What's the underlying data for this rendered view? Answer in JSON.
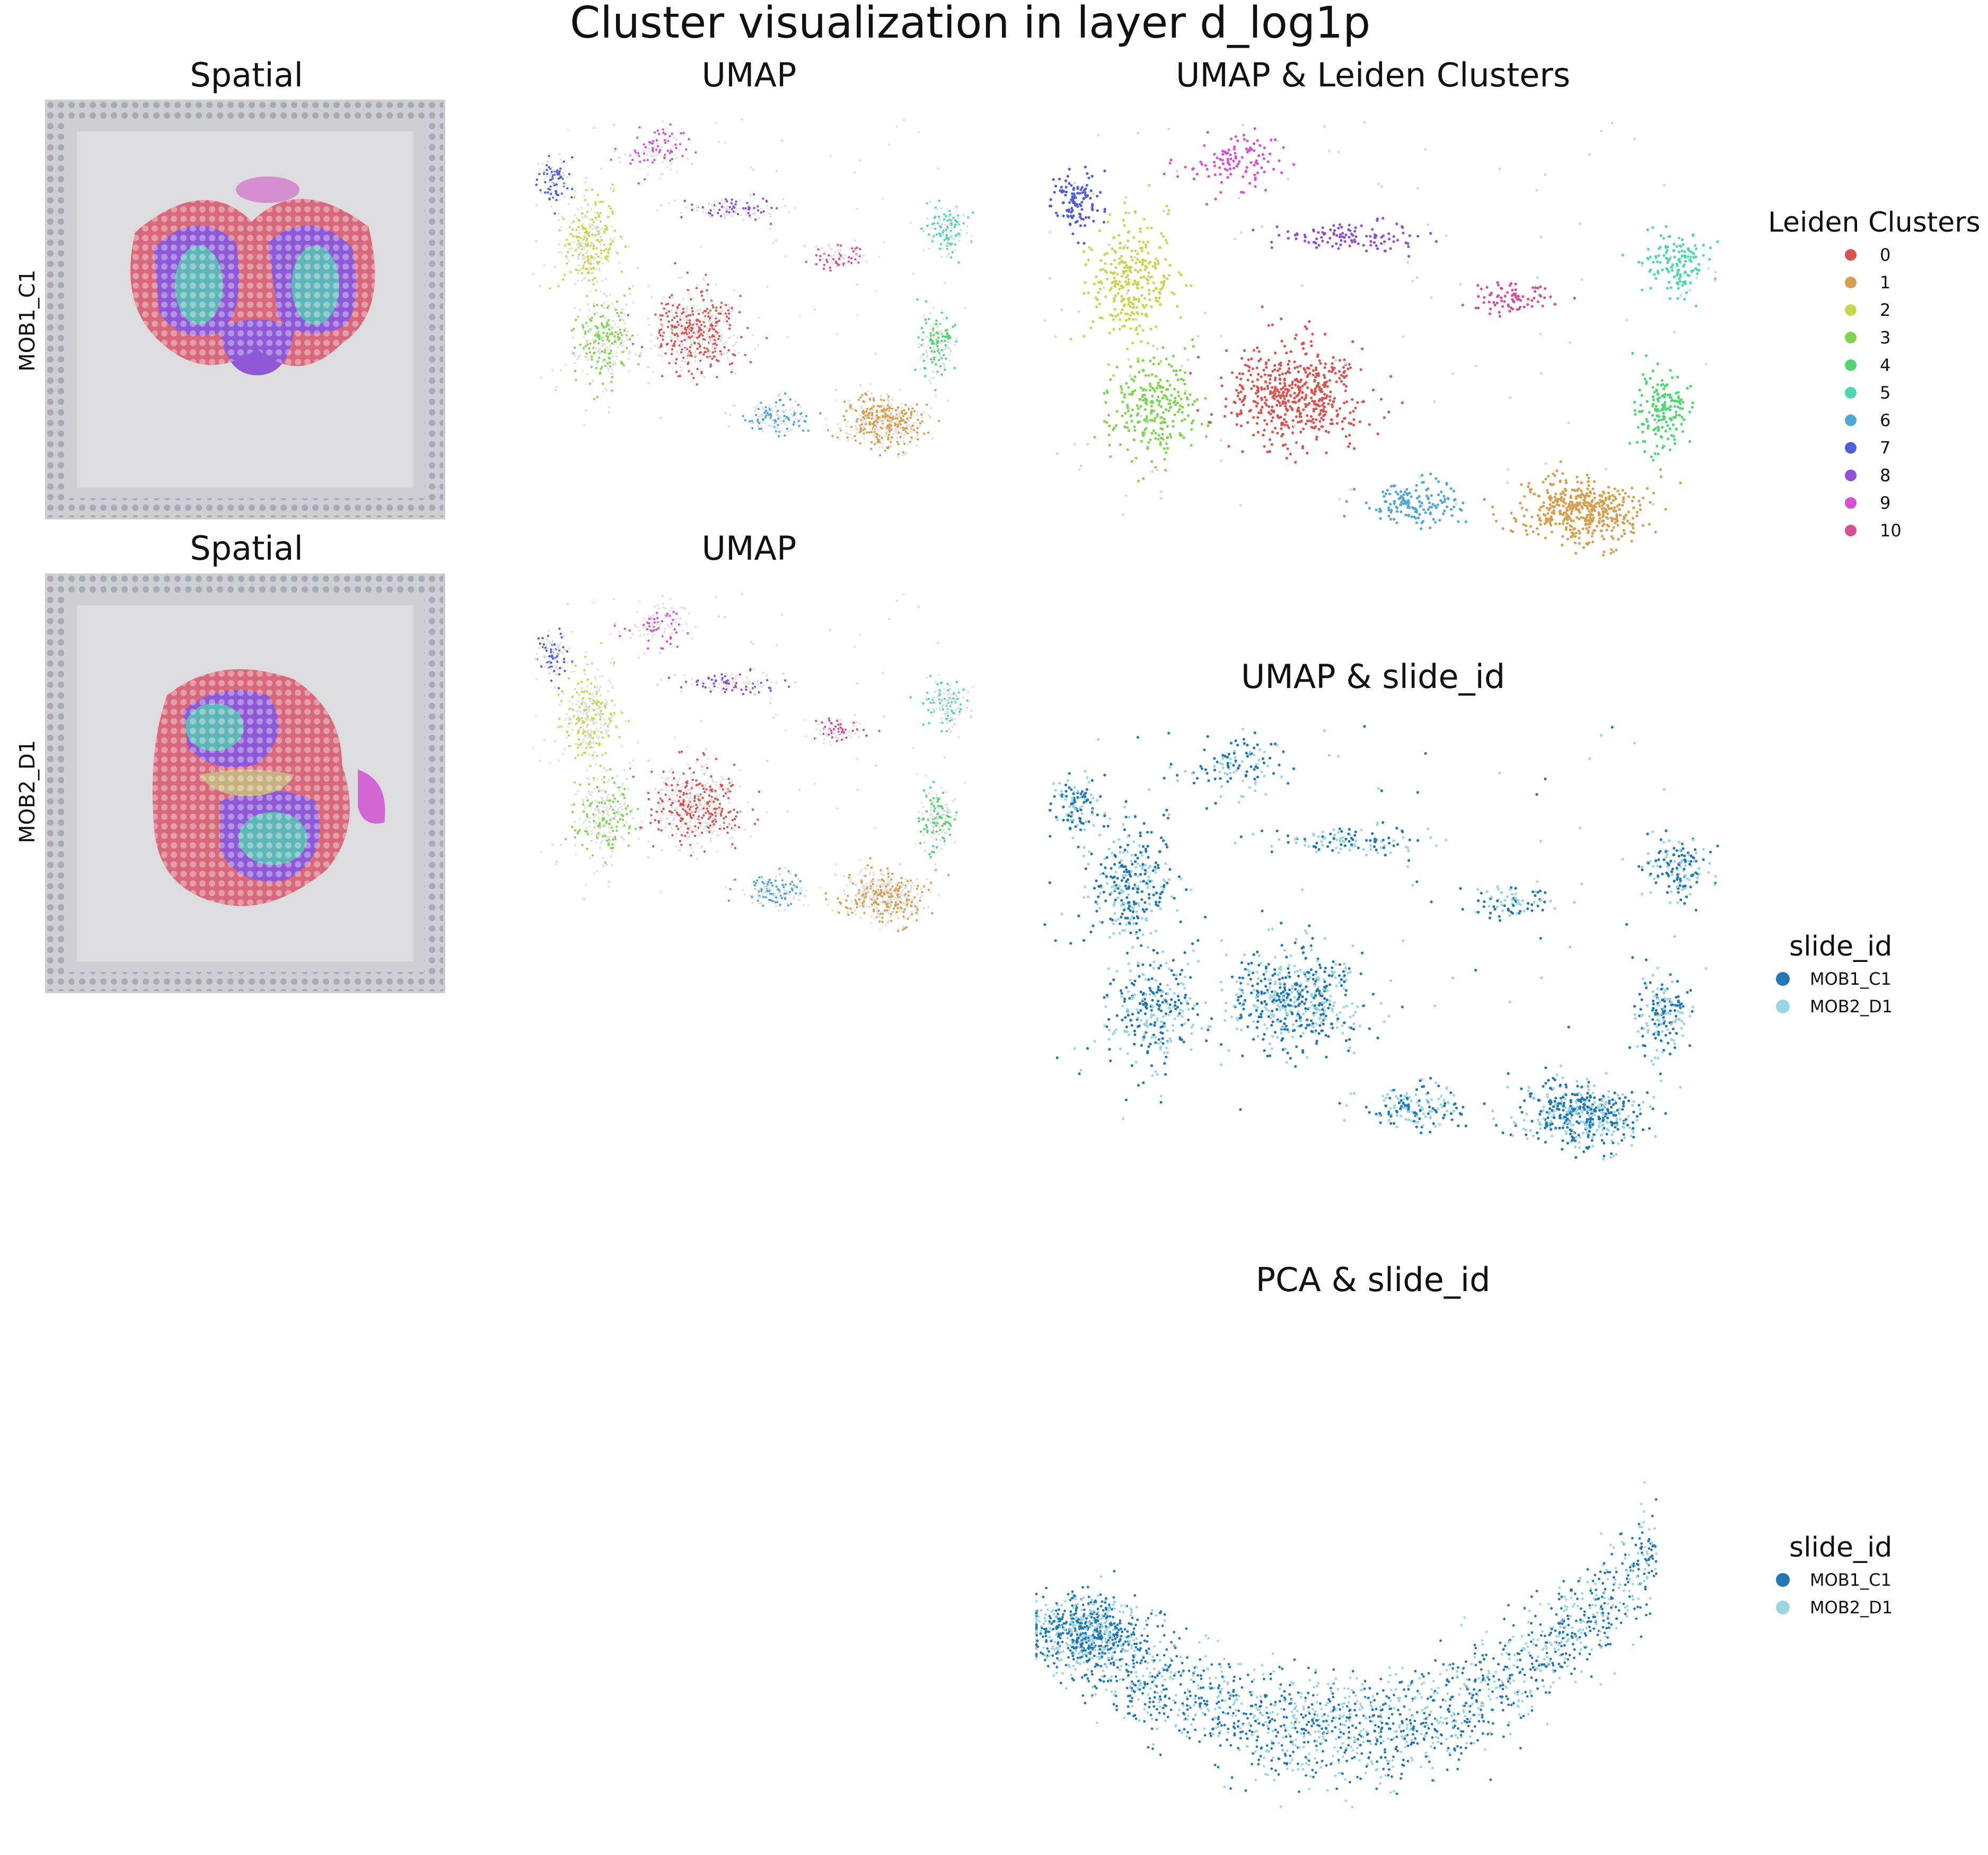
{
  "figure": {
    "title": "Cluster visualization in layer d_log1p"
  },
  "panels": {
    "spatial_1": {
      "title": "Spatial",
      "row_label": "MOB1_C1"
    },
    "spatial_2": {
      "title": "Spatial",
      "row_label": "MOB2_D1"
    },
    "umap_1": {
      "title": "UMAP"
    },
    "umap_2": {
      "title": "UMAP"
    },
    "umap_leiden": {
      "title": "UMAP & Leiden Clusters"
    },
    "umap_slide": {
      "title": "UMAP & slide_id"
    },
    "pca_slide": {
      "title": "PCA & slide_id"
    }
  },
  "legends": {
    "leiden": {
      "title": "Leiden Clusters",
      "items": [
        {
          "label": "0",
          "color": "#d9534f"
        },
        {
          "label": "1",
          "color": "#d6a04f"
        },
        {
          "label": "2",
          "color": "#c6d64f"
        },
        {
          "label": "3",
          "color": "#7ed64f"
        },
        {
          "label": "4",
          "color": "#4fd670"
        },
        {
          "label": "5",
          "color": "#4fd6b4"
        },
        {
          "label": "6",
          "color": "#4fa8d6"
        },
        {
          "label": "7",
          "color": "#4f5fd6"
        },
        {
          "label": "8",
          "color": "#8f4fd6"
        },
        {
          "label": "9",
          "color": "#d64fd6"
        },
        {
          "label": "10",
          "color": "#d64f95"
        }
      ]
    },
    "slide_umap": {
      "title": "slide_id",
      "items": [
        {
          "label": "MOB1_C1",
          "color": "#1f77b4"
        },
        {
          "label": "MOB2_D1",
          "color": "#9dd6e3"
        }
      ]
    },
    "slide_pca": {
      "title": "slide_id",
      "items": [
        {
          "label": "MOB1_C1",
          "color": "#1f77b4"
        },
        {
          "label": "MOB2_D1",
          "color": "#9dd6e3"
        }
      ]
    }
  },
  "chart_data": [
    {
      "type": "scatter",
      "panel": "umap_leiden",
      "title": "UMAP & Leiden Clusters",
      "xlabel": "",
      "ylabel": "",
      "grid": false,
      "legend": "right",
      "x_range": [
        0,
        10
      ],
      "y_range": [
        0,
        10
      ],
      "series": [
        {
          "name": "0",
          "color": "#d9534f",
          "cx": 3.8,
          "cy": 4.6,
          "sx": 0.9,
          "sy": 0.9,
          "n": 520
        },
        {
          "name": "1",
          "color": "#d6a04f",
          "cx": 8.0,
          "cy": 2.3,
          "sx": 0.85,
          "sy": 0.6,
          "n": 460
        },
        {
          "name": "2",
          "color": "#c6d64f",
          "cx": 1.4,
          "cy": 6.8,
          "sx": 0.55,
          "sy": 1.1,
          "n": 300
        },
        {
          "name": "3",
          "color": "#7ed64f",
          "cx": 1.7,
          "cy": 4.3,
          "sx": 0.6,
          "sy": 0.9,
          "n": 260
        },
        {
          "name": "4",
          "color": "#4fd670",
          "cx": 9.2,
          "cy": 4.3,
          "sx": 0.4,
          "sy": 0.7,
          "n": 170
        },
        {
          "name": "5",
          "color": "#4fd6b4",
          "cx": 9.4,
          "cy": 7.2,
          "sx": 0.45,
          "sy": 0.6,
          "n": 140
        },
        {
          "name": "6",
          "color": "#4fa8d6",
          "cx": 5.5,
          "cy": 2.4,
          "sx": 0.7,
          "sy": 0.35,
          "n": 150
        },
        {
          "name": "7",
          "color": "#4f5fd6",
          "cx": 0.6,
          "cy": 8.4,
          "sx": 0.35,
          "sy": 0.6,
          "n": 110
        },
        {
          "name": "8",
          "color": "#8f4fd6",
          "cx": 4.6,
          "cy": 7.7,
          "sx": 0.9,
          "sy": 0.3,
          "n": 110
        },
        {
          "name": "9",
          "color": "#d64fd6",
          "cx": 2.9,
          "cy": 9.2,
          "sx": 0.6,
          "sy": 0.5,
          "n": 110
        },
        {
          "name": "10",
          "color": "#d64f95",
          "cx": 7.0,
          "cy": 6.5,
          "sx": 0.55,
          "sy": 0.25,
          "n": 80
        }
      ]
    },
    {
      "type": "scatter",
      "panel": "umap_slide",
      "title": "UMAP & slide_id",
      "xlabel": "",
      "ylabel": "",
      "grid": false,
      "legend": "right",
      "x_range": [
        0,
        10
      ],
      "y_range": [
        0,
        10
      ],
      "series": [
        {
          "name": "MOB1_C1",
          "color": "#1f77b4"
        },
        {
          "name": "MOB2_D1",
          "color": "#9dd6e3"
        }
      ]
    },
    {
      "type": "scatter",
      "panel": "pca_slide",
      "title": "PCA & slide_id",
      "xlabel": "",
      "ylabel": "",
      "grid": false,
      "legend": "right",
      "x_range": [
        0,
        10
      ],
      "y_range": [
        0,
        10
      ],
      "series": [
        {
          "name": "MOB1_C1",
          "color": "#1f77b4"
        },
        {
          "name": "MOB2_D1",
          "color": "#9dd6e3"
        }
      ]
    }
  ]
}
